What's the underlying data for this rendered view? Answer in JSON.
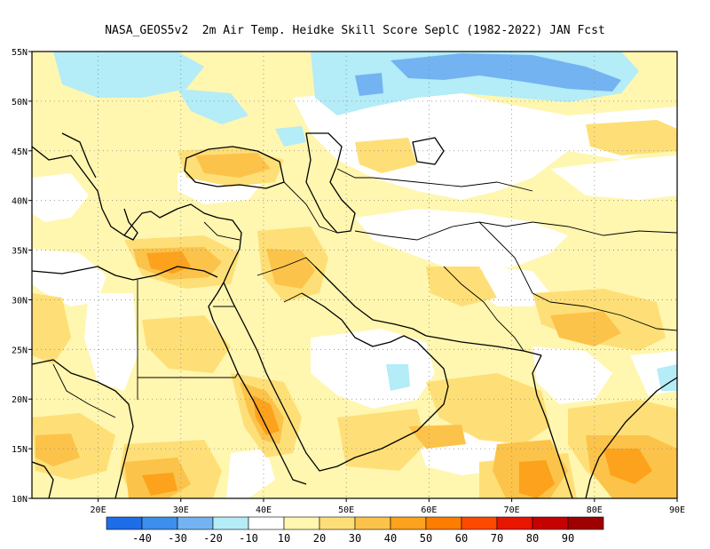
{
  "title": "NASA_GEOS5v2  2m Air Temp. Heidke Skill Score SeplC (1982-2022) JAN Fcst",
  "map": {
    "lon_range": [
      12,
      90
    ],
    "lat_range": [
      10,
      55
    ],
    "lat_ticks": [
      {
        "value": 10,
        "label": "10N"
      },
      {
        "value": 15,
        "label": "15N"
      },
      {
        "value": 20,
        "label": "20N"
      },
      {
        "value": 25,
        "label": "25N"
      },
      {
        "value": 30,
        "label": "30N"
      },
      {
        "value": 35,
        "label": "35N"
      },
      {
        "value": 40,
        "label": "40N"
      },
      {
        "value": 45,
        "label": "45N"
      },
      {
        "value": 50,
        "label": "50N"
      },
      {
        "value": 55,
        "label": "55N"
      }
    ],
    "lon_ticks": [
      {
        "value": 20,
        "label": "20E"
      },
      {
        "value": 30,
        "label": "30E"
      },
      {
        "value": 40,
        "label": "40E"
      },
      {
        "value": 50,
        "label": "50E"
      },
      {
        "value": 60,
        "label": "60E"
      },
      {
        "value": 70,
        "label": "70E"
      },
      {
        "value": 80,
        "label": "80E"
      },
      {
        "value": 90,
        "label": "90E"
      }
    ],
    "grid": "dotted"
  },
  "colorbar": {
    "colors": [
      "#1e6de8",
      "#3c8fec",
      "#74b3f1",
      "#b4ecf7",
      "#ffffff",
      "#fff6b0",
      "#fedf77",
      "#fcc34a",
      "#fca21c",
      "#fc7e00",
      "#fd4a00",
      "#e81500",
      "#c50200",
      "#9e0000"
    ],
    "labels": [
      "-40",
      "-30",
      "-20",
      "-10",
      "10",
      "20",
      "30",
      "40",
      "50",
      "60",
      "70",
      "80",
      "90"
    ]
  },
  "regions": [
    {
      "name": "northern-blue-band",
      "category": "-20",
      "color": "#74b3f1"
    },
    {
      "name": "northern-lightblue-band",
      "category": "-10",
      "color": "#b4ecf7"
    },
    {
      "name": "neutral-areas",
      "category": "0",
      "color": "#ffffff"
    },
    {
      "name": "light-yellow-areas",
      "category": "10",
      "color": "#fff6b0"
    },
    {
      "name": "yellow-areas",
      "category": "20",
      "color": "#fedf77"
    },
    {
      "name": "orange-areas",
      "category": "30",
      "color": "#fcc34a"
    },
    {
      "name": "dark-orange-areas",
      "category": "40",
      "color": "#fca21c"
    }
  ]
}
